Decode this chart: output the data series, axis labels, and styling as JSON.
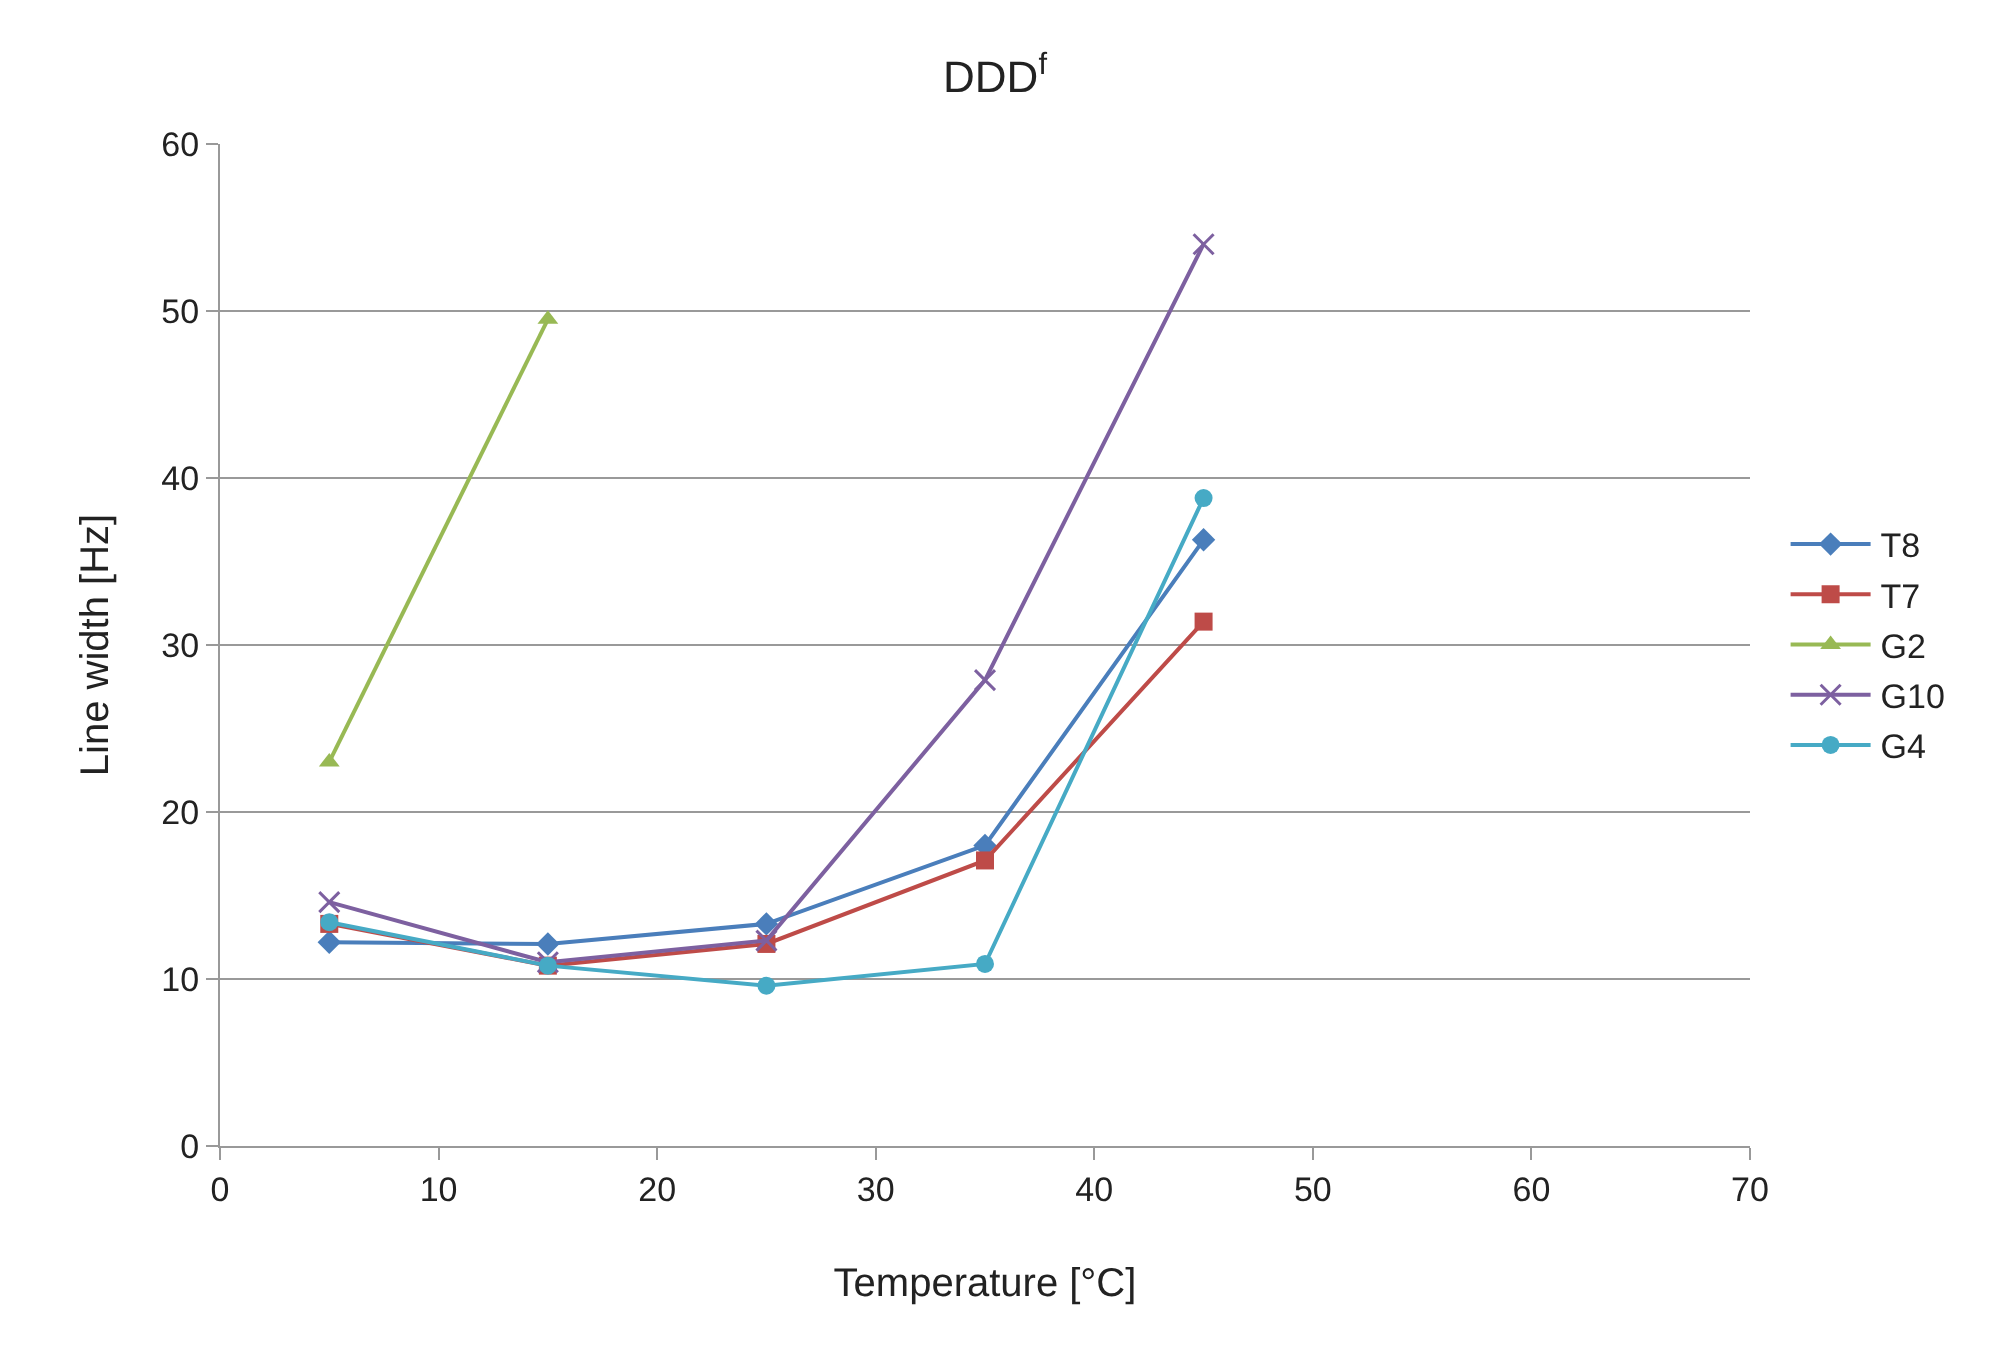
{
  "chart_data": {
    "type": "line",
    "title": "DDD$^{f}$",
    "xlabel": "Temperature [°C]",
    "ylabel": "Line width [Hz]",
    "x": [
      5,
      15,
      25,
      35,
      45
    ],
    "series": [
      {
        "name": "T8",
        "color": "#4a7ebb",
        "marker": "diamond",
        "values": [
          12.2,
          12.1,
          13.3,
          18.0,
          36.3
        ]
      },
      {
        "name": "T7",
        "color": "#be4b48",
        "marker": "square",
        "values": [
          13.3,
          10.8,
          12.1,
          17.1,
          31.4
        ]
      },
      {
        "name": "G2",
        "color": "#98b954",
        "marker": "triangle",
        "values": [
          23.0,
          49.5,
          null,
          null,
          null
        ]
      },
      {
        "name": "G10",
        "color": "#7d60a0",
        "marker": "cross",
        "values": [
          14.6,
          11.0,
          12.3,
          27.9,
          54.0
        ]
      },
      {
        "name": "G4",
        "color": "#46aac5",
        "marker": "circle",
        "values": [
          13.4,
          10.8,
          9.6,
          10.9,
          38.8
        ]
      }
    ],
    "xlim": [
      0,
      70
    ],
    "xticks": [
      0,
      10,
      20,
      30,
      40,
      50,
      60,
      70
    ],
    "ylim": [
      0,
      60
    ],
    "yticks": [
      0,
      10,
      20,
      30,
      40,
      50,
      60
    ],
    "grid": "y",
    "legend": "right"
  }
}
